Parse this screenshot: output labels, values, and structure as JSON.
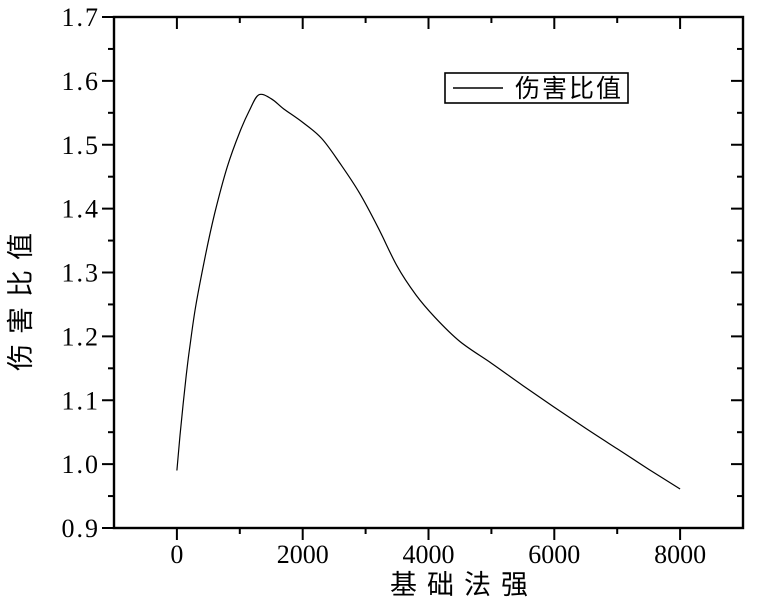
{
  "chart_data": {
    "type": "line",
    "title": "",
    "xlabel": "基础法强",
    "ylabel": "伤害比值",
    "legend": {
      "label": "伤害比值",
      "position": "top-right",
      "border": true,
      "line_color": "#000000"
    },
    "x_range": [
      -1000,
      9000
    ],
    "y_range": [
      0.9,
      1.7
    ],
    "x_major_ticks": [
      0,
      2000,
      4000,
      6000,
      8000
    ],
    "x_tick_labels": [
      "0",
      "2000",
      "4000",
      "6000",
      "8000"
    ],
    "x_minor_ticks": [
      1000,
      3000,
      5000,
      7000
    ],
    "y_major_ticks": [
      0.9,
      1.0,
      1.1,
      1.2,
      1.3,
      1.4,
      1.5,
      1.6,
      1.7
    ],
    "y_tick_labels": [
      "0.9",
      "1.0",
      "1.1",
      "1.2",
      "1.3",
      "1.4",
      "1.5",
      "1.6",
      "1.7"
    ],
    "y_minor_ticks": [
      0.95,
      1.05,
      1.15,
      1.25,
      1.35,
      1.45,
      1.55,
      1.65
    ],
    "grid": "off",
    "frame": "box with mirrored inward ticks on top/right",
    "peak_point": {
      "x": 1300,
      "y": 1.58
    },
    "start_point": {
      "x": 0,
      "y": 0.99
    },
    "end_point": {
      "x": 8000,
      "y": 0.96
    },
    "series": [
      {
        "name": "伤害比值",
        "color": "#000000",
        "x": [
          0,
          50,
          100,
          150,
          200,
          300,
          450,
          600,
          800,
          1000,
          1150,
          1300,
          1500,
          1700,
          2000,
          2300,
          2600,
          2900,
          3200,
          3500,
          3800,
          4100,
          4500,
          5000,
          5500,
          6000,
          6500,
          7000,
          7500,
          8000
        ],
        "y": [
          0.99,
          1.045,
          1.095,
          1.14,
          1.18,
          1.248,
          1.325,
          1.392,
          1.465,
          1.52,
          1.553,
          1.578,
          1.572,
          1.556,
          1.535,
          1.51,
          1.47,
          1.425,
          1.37,
          1.31,
          1.265,
          1.23,
          1.192,
          1.158,
          1.123,
          1.089,
          1.056,
          1.024,
          0.992,
          0.961
        ]
      }
    ],
    "colors": {
      "line": "#000000",
      "frame": "#000000",
      "text": "#000000",
      "background": "#ffffff"
    }
  }
}
